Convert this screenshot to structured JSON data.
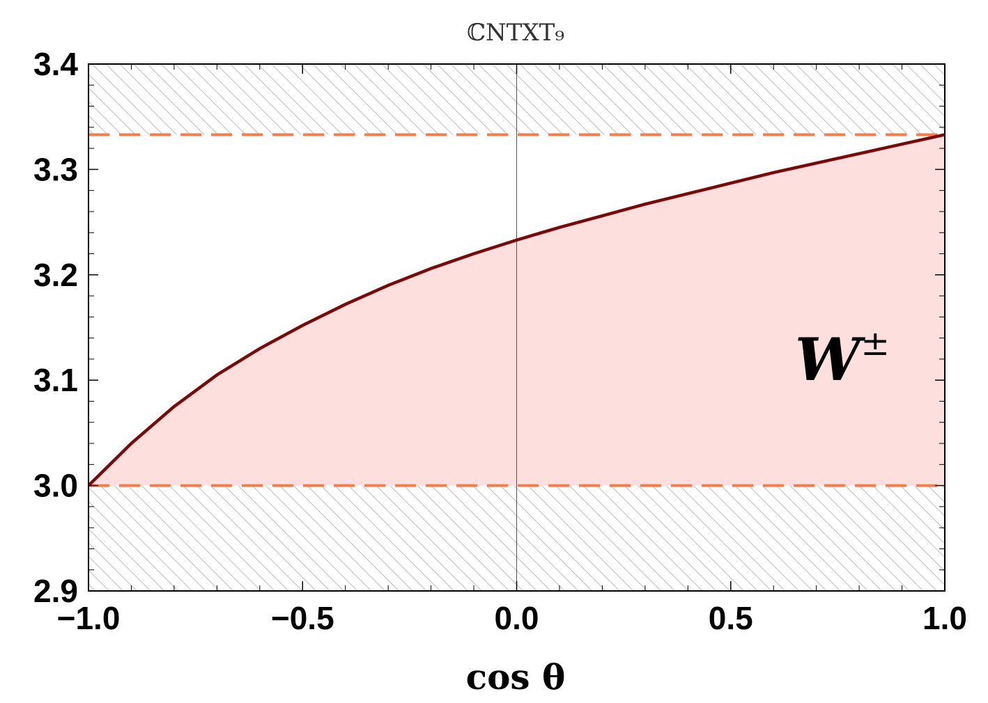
{
  "chart_data": {
    "type": "area",
    "title": "ℂNTXT₉",
    "xlabel": "cos θ",
    "ylabel": "",
    "xlim": [
      -1.0,
      1.0
    ],
    "ylim": [
      2.9,
      3.4
    ],
    "x_ticks": [
      "-1.0",
      "-0.5",
      "0.0",
      "0.5",
      "1.0"
    ],
    "y_ticks": [
      "2.9",
      "3.0",
      "3.1",
      "3.2",
      "3.3",
      "3.4"
    ],
    "grid": false,
    "series": [
      {
        "name": "",
        "color": "#7a0a0a",
        "fill_color": "#fde0dd",
        "x": [
          -1.0,
          -0.9,
          -0.8,
          -0.7,
          -0.6,
          -0.5,
          -0.4,
          -0.3,
          -0.2,
          -0.1,
          0.0,
          0.1,
          0.2,
          0.3,
          0.4,
          0.5,
          0.6,
          0.7,
          0.8,
          0.9,
          1.0
        ],
        "y": [
          3.0,
          3.04,
          3.075,
          3.105,
          3.13,
          3.152,
          3.172,
          3.19,
          3.206,
          3.22,
          3.233,
          3.245,
          3.256,
          3.267,
          3.277,
          3.287,
          3.297,
          3.306,
          3.315,
          3.324,
          3.333
        ]
      }
    ],
    "reference_lines": [
      {
        "y": 3.333,
        "style": "dashed",
        "color": "#f27d4e"
      },
      {
        "y": 3.0,
        "style": "dashed",
        "color": "#f27d4e"
      }
    ],
    "excluded_regions": [
      {
        "y_range": [
          3.333,
          3.4
        ],
        "style": "hatched",
        "color": "#bbbbbb"
      },
      {
        "y_range": [
          2.9,
          3.0
        ],
        "style": "hatched",
        "color": "#bbbbbb"
      }
    ],
    "annotations": [
      {
        "text": "W",
        "superscript": "±",
        "x": 0.65,
        "y": 3.1
      }
    ]
  }
}
